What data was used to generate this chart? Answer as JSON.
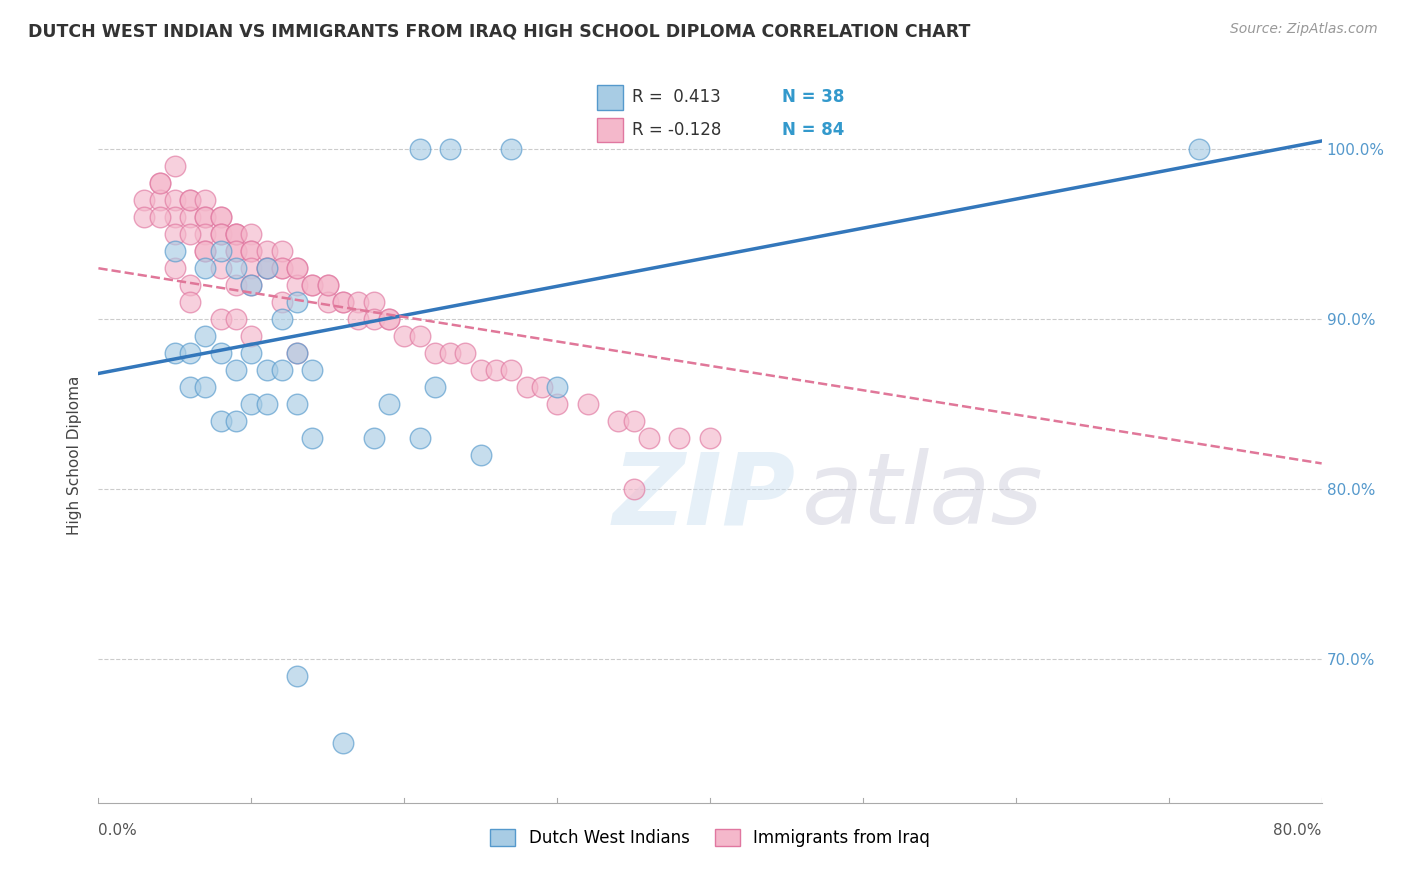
{
  "title": "DUTCH WEST INDIAN VS IMMIGRANTS FROM IRAQ HIGH SCHOOL DIPLOMA CORRELATION CHART",
  "source": "Source: ZipAtlas.com",
  "ylabel": "High School Diploma",
  "legend_label1": "Dutch West Indians",
  "legend_label2": "Immigrants from Iraq",
  "r1": 0.413,
  "n1": 38,
  "r2": -0.128,
  "n2": 84,
  "color_blue": "#a8cce4",
  "color_pink": "#f4b8cb",
  "color_blue_edge": "#5599cc",
  "color_pink_edge": "#e077a0",
  "color_line_blue": "#3377bb",
  "color_line_pink": "#e07799",
  "xmin": 0.0,
  "xmax": 0.8,
  "ymin": 0.615,
  "ymax": 1.025,
  "yticks": [
    0.7,
    0.8,
    0.9,
    1.0
  ],
  "ytick_labels": [
    "70.0%",
    "80.0%",
    "90.0%",
    "100.0%"
  ],
  "blue_line_x0": 0.0,
  "blue_line_y0": 0.868,
  "blue_line_x1": 0.8,
  "blue_line_y1": 1.005,
  "pink_line_x0": 0.0,
  "pink_line_y0": 0.93,
  "pink_line_x1": 0.8,
  "pink_line_y1": 0.815,
  "blue_x": [
    0.21,
    0.23,
    0.27,
    0.05,
    0.07,
    0.08,
    0.09,
    0.1,
    0.11,
    0.12,
    0.13,
    0.05,
    0.06,
    0.07,
    0.08,
    0.09,
    0.1,
    0.11,
    0.12,
    0.13,
    0.14,
    0.06,
    0.07,
    0.22,
    0.3,
    0.1,
    0.11,
    0.13,
    0.19,
    0.08,
    0.09,
    0.14,
    0.18,
    0.21,
    0.25,
    0.13,
    0.72,
    0.16
  ],
  "blue_y": [
    1.0,
    1.0,
    1.0,
    0.94,
    0.93,
    0.94,
    0.93,
    0.92,
    0.93,
    0.9,
    0.91,
    0.88,
    0.88,
    0.89,
    0.88,
    0.87,
    0.88,
    0.87,
    0.87,
    0.88,
    0.87,
    0.86,
    0.86,
    0.86,
    0.86,
    0.85,
    0.85,
    0.85,
    0.85,
    0.84,
    0.84,
    0.83,
    0.83,
    0.83,
    0.82,
    0.69,
    1.0,
    0.65
  ],
  "pink_x": [
    0.04,
    0.05,
    0.03,
    0.04,
    0.04,
    0.05,
    0.05,
    0.06,
    0.06,
    0.06,
    0.07,
    0.07,
    0.07,
    0.07,
    0.08,
    0.08,
    0.08,
    0.08,
    0.09,
    0.09,
    0.09,
    0.09,
    0.09,
    0.1,
    0.1,
    0.1,
    0.1,
    0.11,
    0.11,
    0.11,
    0.12,
    0.12,
    0.12,
    0.13,
    0.13,
    0.13,
    0.14,
    0.14,
    0.15,
    0.15,
    0.15,
    0.16,
    0.16,
    0.17,
    0.17,
    0.18,
    0.18,
    0.19,
    0.19,
    0.2,
    0.21,
    0.22,
    0.23,
    0.24,
    0.25,
    0.26,
    0.27,
    0.28,
    0.29,
    0.3,
    0.32,
    0.34,
    0.35,
    0.36,
    0.38,
    0.4,
    0.05,
    0.06,
    0.06,
    0.08,
    0.09,
    0.1,
    0.13,
    0.35,
    0.03,
    0.04,
    0.05,
    0.06,
    0.07,
    0.07,
    0.08,
    0.09,
    0.1,
    0.12
  ],
  "pink_y": [
    0.98,
    0.99,
    0.97,
    0.97,
    0.98,
    0.97,
    0.96,
    0.97,
    0.96,
    0.97,
    0.97,
    0.96,
    0.96,
    0.95,
    0.96,
    0.96,
    0.95,
    0.95,
    0.95,
    0.95,
    0.94,
    0.95,
    0.94,
    0.95,
    0.94,
    0.94,
    0.93,
    0.94,
    0.93,
    0.93,
    0.93,
    0.94,
    0.93,
    0.93,
    0.92,
    0.93,
    0.92,
    0.92,
    0.92,
    0.91,
    0.92,
    0.91,
    0.91,
    0.91,
    0.9,
    0.91,
    0.9,
    0.9,
    0.9,
    0.89,
    0.89,
    0.88,
    0.88,
    0.88,
    0.87,
    0.87,
    0.87,
    0.86,
    0.86,
    0.85,
    0.85,
    0.84,
    0.84,
    0.83,
    0.83,
    0.83,
    0.93,
    0.92,
    0.91,
    0.9,
    0.9,
    0.89,
    0.88,
    0.8,
    0.96,
    0.96,
    0.95,
    0.95,
    0.94,
    0.94,
    0.93,
    0.92,
    0.92,
    0.91
  ]
}
